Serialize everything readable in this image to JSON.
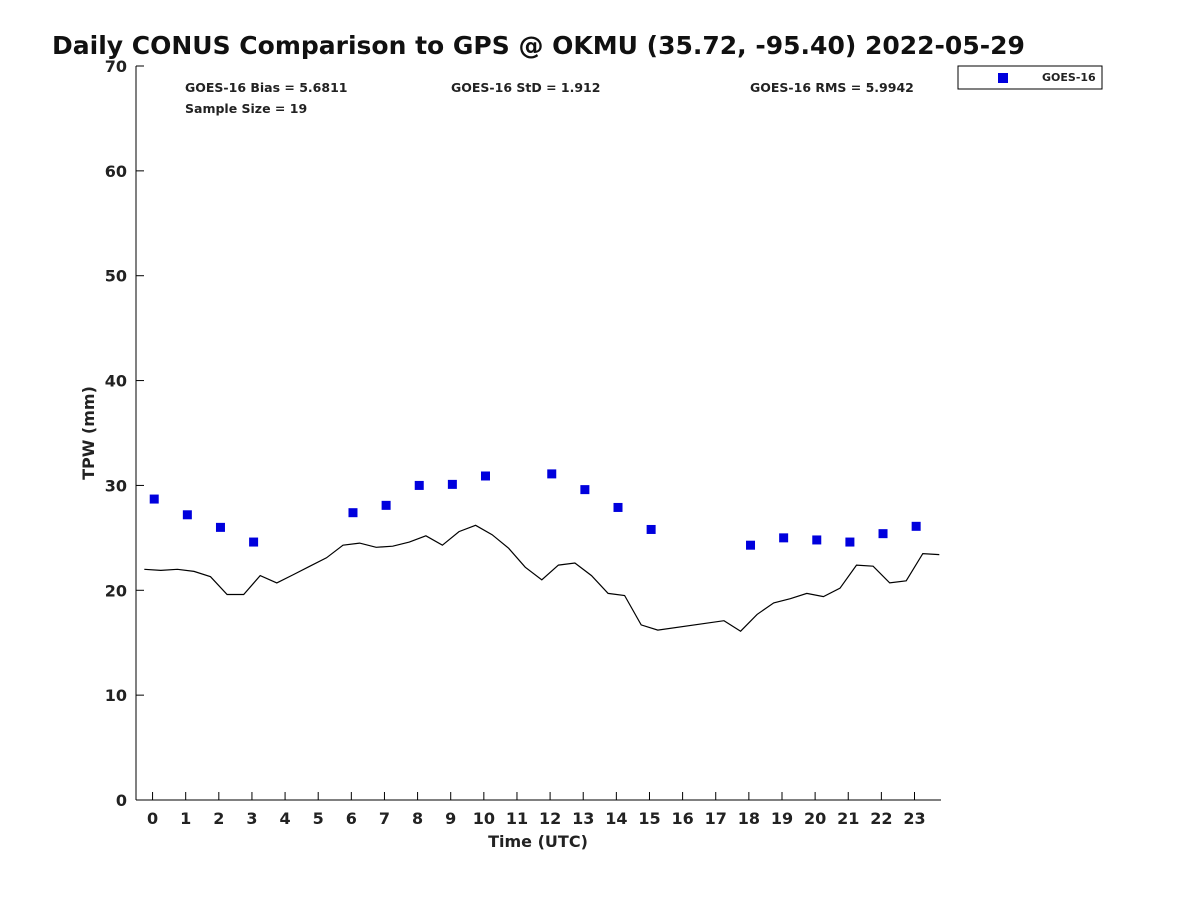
{
  "chart_data": {
    "type": "scatter",
    "title": "Daily CONUS Comparison to GPS @ OKMU (35.72, -95.40) 2022-05-29",
    "xlabel": "Time (UTC)",
    "ylabel": "TPW (mm)",
    "xlim": [
      -0.5,
      23.8
    ],
    "ylim": [
      0,
      70
    ],
    "x_ticks": [
      0,
      1,
      2,
      3,
      4,
      5,
      6,
      7,
      8,
      9,
      10,
      11,
      12,
      13,
      14,
      15,
      16,
      17,
      18,
      19,
      20,
      21,
      22,
      23
    ],
    "y_ticks": [
      0,
      10,
      20,
      30,
      40,
      50,
      60,
      70
    ],
    "grid": false,
    "legend_position": "top-right outside",
    "stats": {
      "bias": "GOES-16 Bias = 5.6811",
      "std": "GOES-16 StD = 1.912",
      "rms": "GOES-16 RMS = 5.9942",
      "sample": "Sample Size = 19"
    },
    "series": [
      {
        "name": "GOES-16",
        "kind": "scatter",
        "marker": "square",
        "color": "#0000dd",
        "x": [
          0.05,
          1.05,
          2.05,
          3.05,
          6.05,
          7.05,
          8.05,
          9.05,
          10.05,
          12.05,
          13.05,
          14.05,
          15.05,
          18.05,
          19.05,
          20.05,
          21.05,
          22.05,
          23.05
        ],
        "y": [
          28.7,
          27.2,
          26.0,
          24.6,
          27.4,
          28.1,
          30.0,
          30.1,
          30.9,
          31.1,
          29.6,
          27.9,
          25.8,
          24.3,
          25.0,
          24.8,
          24.6,
          25.4,
          26.1
        ]
      },
      {
        "kind": "line",
        "color": "#000000",
        "x": [
          -0.25,
          0.25,
          0.75,
          1.25,
          1.75,
          2.25,
          2.75,
          3.25,
          3.75,
          4.25,
          4.75,
          5.25,
          5.75,
          6.25,
          6.75,
          7.25,
          7.75,
          8.25,
          8.75,
          9.25,
          9.75,
          10.25,
          10.75,
          11.25,
          11.75,
          12.25,
          12.75,
          13.25,
          13.75,
          14.25,
          14.75,
          15.25,
          17.25,
          17.75,
          18.25,
          18.75,
          19.25,
          19.75,
          20.25,
          20.75,
          21.25,
          21.75,
          22.25,
          22.75,
          23.25,
          23.75
        ],
        "y": [
          22.0,
          21.9,
          22.0,
          21.8,
          21.3,
          19.6,
          19.6,
          21.4,
          20.7,
          21.5,
          22.3,
          23.1,
          24.3,
          24.5,
          24.1,
          24.2,
          24.6,
          25.2,
          24.3,
          25.6,
          26.2,
          25.3,
          24.0,
          22.2,
          21.0,
          22.4,
          22.6,
          21.4,
          19.7,
          19.5,
          16.7,
          16.2,
          17.1,
          16.1,
          17.7,
          18.8,
          19.2,
          19.7,
          19.4,
          20.2,
          22.4,
          22.3,
          20.7,
          20.9,
          23.5,
          23.4
        ]
      }
    ]
  }
}
